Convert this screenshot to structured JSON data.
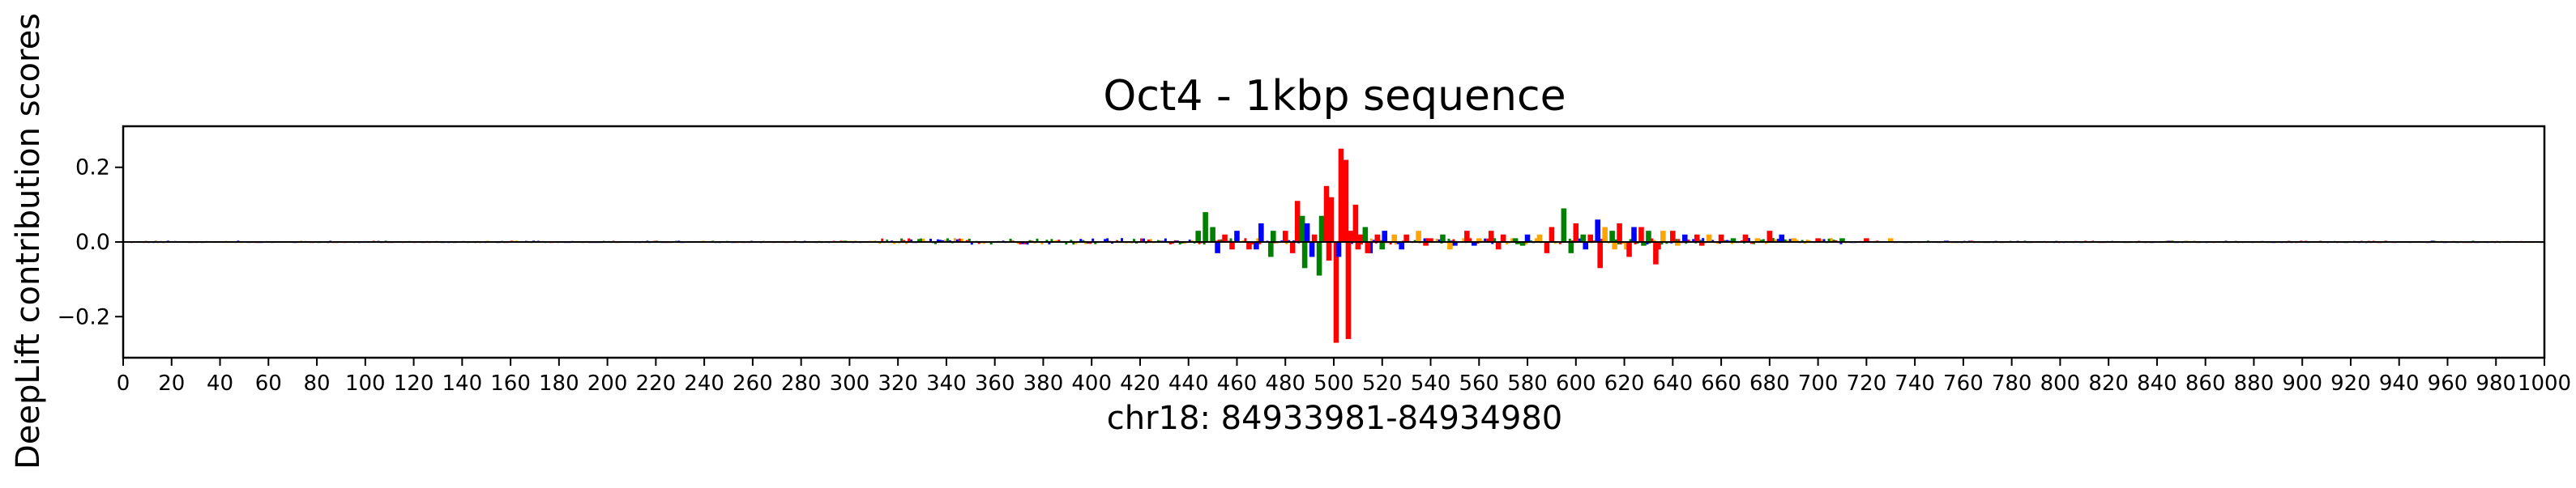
{
  "chart_data": {
    "type": "sequence-logo",
    "title": "Oct4 - 1kbp sequence",
    "xlabel": "chr18: 84933981-84934980",
    "ylabel": "DeepLift contribution scores",
    "xlim": [
      0,
      1000
    ],
    "ylim": [
      -0.31,
      0.31
    ],
    "xticks": [
      0,
      20,
      40,
      60,
      80,
      100,
      120,
      140,
      160,
      180,
      200,
      220,
      240,
      260,
      280,
      300,
      320,
      340,
      360,
      380,
      400,
      420,
      440,
      460,
      480,
      500,
      520,
      540,
      560,
      580,
      600,
      620,
      640,
      660,
      680,
      700,
      720,
      740,
      760,
      780,
      800,
      820,
      840,
      860,
      880,
      900,
      920,
      940,
      960,
      980,
      1000
    ],
    "xtick_labels": [
      "0",
      "20",
      "40",
      "60",
      "80",
      "100",
      "120",
      "140",
      "160",
      "180",
      "200",
      "220",
      "240",
      "260",
      "280",
      "300",
      "320",
      "340",
      "360",
      "380",
      "400",
      "420",
      "440",
      "460",
      "480",
      "500",
      "520",
      "540",
      "560",
      "580",
      "600",
      "620",
      "640",
      "660",
      "680",
      "700",
      "720",
      "740",
      "760",
      "780",
      "800",
      "820",
      "840",
      "860",
      "880",
      "900",
      "920",
      "940",
      "960",
      "980",
      "1000"
    ],
    "yticks": [
      -0.2,
      0.0,
      0.2
    ],
    "ytick_labels": [
      "−0.2",
      "0.0",
      "0.2"
    ],
    "grid": false,
    "legend": false,
    "base_colors": {
      "A": "#008000",
      "C": "#0000ff",
      "G": "#ffa500",
      "T": "#ff0000"
    },
    "series": [
      {
        "positions": [
          444,
          447,
          450,
          455,
          460,
          465,
          470,
          475,
          480,
          485,
          487,
          489,
          492,
          495,
          497,
          499,
          501,
          503,
          505,
          507,
          509,
          511,
          513,
          515,
          518,
          521,
          525,
          530,
          535,
          540,
          545,
          550,
          555,
          560,
          565,
          570,
          575,
          580,
          585,
          590,
          595,
          598,
          600,
          603,
          606,
          609,
          612,
          615,
          618,
          621,
          624,
          627,
          630,
          633,
          636,
          640,
          645,
          650,
          655,
          660,
          665,
          670,
          675,
          680,
          685,
          690,
          700,
          710,
          720,
          730
        ],
        "bases": [
          "A",
          "A",
          "A",
          "T",
          "C",
          "T",
          "C",
          "A",
          "T",
          "T",
          "A",
          "C",
          "T",
          "A",
          "T",
          "T",
          "T",
          "T",
          "T",
          "T",
          "T",
          "T",
          "A",
          "C",
          "T",
          "C",
          "G",
          "T",
          "G",
          "T",
          "A",
          "C",
          "T",
          "G",
          "T",
          "T",
          "A",
          "C",
          "G",
          "T",
          "A",
          "A",
          "T",
          "A",
          "T",
          "C",
          "G",
          "A",
          "T",
          "G",
          "C",
          "T",
          "A",
          "T",
          "G",
          "T",
          "C",
          "T",
          "G",
          "T",
          "A",
          "T",
          "G",
          "T",
          "C",
          "G",
          "T",
          "A",
          "T",
          "G"
        ],
        "scores": [
          0.03,
          0.08,
          0.04,
          0.02,
          0.03,
          -0.02,
          0.05,
          0.03,
          0.03,
          0.11,
          0.07,
          0.05,
          0.02,
          0.07,
          0.15,
          0.12,
          -0.27,
          0.25,
          0.22,
          0.03,
          0.1,
          0.02,
          0.04,
          -0.03,
          0.02,
          0.03,
          0.02,
          0.02,
          0.03,
          0.01,
          0.02,
          -0.01,
          0.03,
          0.01,
          0.03,
          0.02,
          0.01,
          0.02,
          0.02,
          0.04,
          0.09,
          -0.03,
          0.05,
          0.02,
          0.02,
          0.06,
          0.04,
          0.03,
          0.05,
          -0.02,
          0.04,
          0.04,
          0.03,
          -0.06,
          0.03,
          0.03,
          0.02,
          0.02,
          0.02,
          0.02,
          0.01,
          0.02,
          0.01,
          0.03,
          0.02,
          0.01,
          0.01,
          0.01,
          0.01,
          0.01
        ]
      },
      {
        "positions": [
          452,
          458,
          468,
          474,
          483,
          488,
          491,
          494,
          498,
          502,
          506,
          510,
          514,
          520,
          528,
          538,
          548,
          558,
          568,
          578,
          588,
          604,
          610,
          616,
          622,
          628,
          634,
          642,
          652
        ],
        "bases": [
          "C",
          "T",
          "C",
          "A",
          "T",
          "A",
          "C",
          "A",
          "T",
          "C",
          "T",
          "T",
          "T",
          "A",
          "C",
          "T",
          "G",
          "C",
          "T",
          "A",
          "T",
          "C",
          "T",
          "G",
          "T",
          "A",
          "T",
          "G",
          "T"
        ],
        "scores": [
          -0.03,
          -0.02,
          -0.02,
          -0.04,
          -0.03,
          -0.07,
          -0.04,
          -0.09,
          -0.05,
          -0.04,
          -0.26,
          -0.02,
          -0.03,
          -0.02,
          -0.02,
          -0.01,
          -0.02,
          -0.01,
          -0.02,
          -0.01,
          -0.03,
          -0.02,
          -0.07,
          -0.02,
          -0.04,
          -0.01,
          -0.02,
          -0.01,
          -0.01
        ]
      }
    ]
  }
}
